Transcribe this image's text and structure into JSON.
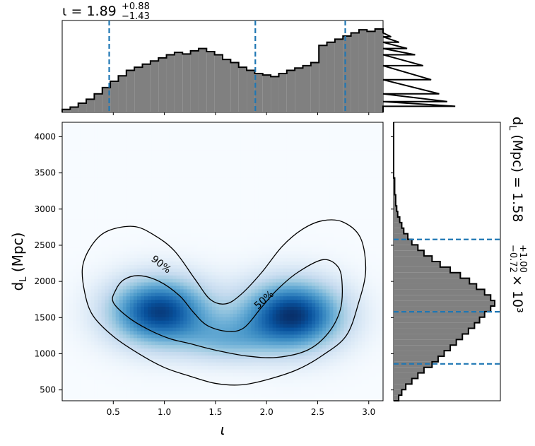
{
  "chart_data": [
    {
      "type": "histogram",
      "panel": "top-marginal",
      "variable": "ι",
      "summary": {
        "median": "1.89",
        "plus": "+0.88",
        "minus": "−1.43"
      },
      "title_parts": {
        "prefix": "ι = ",
        "median": "1.89",
        "plus": "+0.88",
        "minus": "−1.43"
      },
      "xlim": [
        0.0,
        3.14
      ],
      "bin_edges_start": 0.0,
      "bin_width": 0.0785,
      "heights": [
        2,
        5,
        10,
        15,
        22,
        30,
        38,
        45,
        52,
        56,
        60,
        64,
        68,
        72,
        75,
        73,
        77,
        80,
        76,
        72,
        66,
        62,
        56,
        52,
        48,
        46,
        44,
        48,
        52,
        55,
        58,
        62,
        84,
        88,
        92,
        96,
        100,
        104,
        102,
        105,
        100,
        95,
        88,
        80,
        72,
        58,
        40,
        22,
        12,
        6
      ],
      "quantile_lines": [
        0.46,
        1.89,
        2.77
      ],
      "fill_color": "#808080",
      "line_color": "#1f77b4"
    },
    {
      "type": "heatmap",
      "panel": "joint",
      "xlabel": "ι",
      "ylabel": "d_L (Mpc)",
      "xlim": [
        0.0,
        3.14
      ],
      "ylim": [
        350,
        4200
      ],
      "xticks": [
        "0.5",
        "1.0",
        "1.5",
        "2.0",
        "2.5",
        "3.0"
      ],
      "xtick_values": [
        0.5,
        1.0,
        1.5,
        2.0,
        2.5,
        3.0
      ],
      "yticks": [
        "500",
        "1000",
        "1500",
        "2000",
        "2500",
        "3000",
        "3500",
        "4000"
      ],
      "ytick_values": [
        500,
        1000,
        1500,
        2000,
        2500,
        3000,
        3500,
        4000
      ],
      "colormap": "Blues",
      "contour_labels": [
        "90%",
        "50%"
      ],
      "contour_90": [
        [
          0.2,
          2210
        ],
        [
          0.3,
          2520
        ],
        [
          0.45,
          2700
        ],
        [
          0.7,
          2760
        ],
        [
          0.9,
          2640
        ],
        [
          1.1,
          2420
        ],
        [
          1.3,
          2030
        ],
        [
          1.45,
          1750
        ],
        [
          1.6,
          1690
        ],
        [
          1.75,
          1820
        ],
        [
          1.95,
          2120
        ],
        [
          2.15,
          2480
        ],
        [
          2.35,
          2720
        ],
        [
          2.55,
          2840
        ],
        [
          2.75,
          2820
        ],
        [
          2.92,
          2600
        ],
        [
          2.97,
          2150
        ],
        [
          2.9,
          1700
        ],
        [
          2.78,
          1250
        ],
        [
          2.55,
          980
        ],
        [
          2.3,
          780
        ],
        [
          2.0,
          640
        ],
        [
          1.75,
          570
        ],
        [
          1.5,
          590
        ],
        [
          1.25,
          690
        ],
        [
          1.0,
          810
        ],
        [
          0.75,
          1000
        ],
        [
          0.5,
          1240
        ],
        [
          0.3,
          1530
        ],
        [
          0.22,
          1850
        ]
      ],
      "contour_50": [
        [
          0.52,
          1870
        ],
        [
          0.6,
          2020
        ],
        [
          0.75,
          2080
        ],
        [
          0.95,
          2000
        ],
        [
          1.15,
          1800
        ],
        [
          1.28,
          1580
        ],
        [
          1.42,
          1390
        ],
        [
          1.62,
          1310
        ],
        [
          1.78,
          1360
        ],
        [
          1.95,
          1640
        ],
        [
          2.1,
          1880
        ],
        [
          2.3,
          2120
        ],
        [
          2.55,
          2300
        ],
        [
          2.7,
          2200
        ],
        [
          2.74,
          1950
        ],
        [
          2.72,
          1600
        ],
        [
          2.6,
          1280
        ],
        [
          2.4,
          1050
        ],
        [
          2.1,
          950
        ],
        [
          1.8,
          970
        ],
        [
          1.5,
          1050
        ],
        [
          1.25,
          1140
        ],
        [
          1.05,
          1210
        ],
        [
          0.85,
          1330
        ],
        [
          0.65,
          1500
        ],
        [
          0.5,
          1710
        ]
      ],
      "density_peaks": [
        {
          "x": 0.95,
          "y": 1580,
          "sx": 0.35,
          "sy": 330,
          "w": 1.0
        },
        {
          "x": 2.25,
          "y": 1530,
          "sx": 0.35,
          "sy": 340,
          "w": 1.05
        },
        {
          "x": 1.6,
          "y": 1180,
          "sx": 0.3,
          "sy": 220,
          "w": 0.35
        }
      ]
    },
    {
      "type": "histogram",
      "panel": "right-marginal",
      "orientation": "horizontal",
      "variable": "d_L",
      "ylabel_parts": {
        "prefix": "d_L (Mpc) = ",
        "median": "1.58",
        "plus": "+1.00",
        "minus": "−0.72",
        "suffix": "× 10³"
      },
      "ylim": [
        350,
        4200
      ],
      "bin_edges_start": 350,
      "bin_width": 77,
      "heights": [
        5,
        8,
        12,
        18,
        24,
        30,
        38,
        44,
        50,
        56,
        62,
        68,
        74,
        80,
        85,
        90,
        96,
        100,
        96,
        90,
        82,
        75,
        66,
        56,
        46,
        38,
        30,
        24,
        18,
        14,
        10,
        8,
        6,
        4,
        3,
        2,
        2,
        1,
        1,
        1,
        0,
        0,
        0,
        0,
        0,
        0,
        0,
        0,
        0,
        0
      ],
      "quantile_lines": [
        860,
        1580,
        2580
      ],
      "fill_color": "#808080",
      "line_color": "#1f77b4"
    }
  ]
}
